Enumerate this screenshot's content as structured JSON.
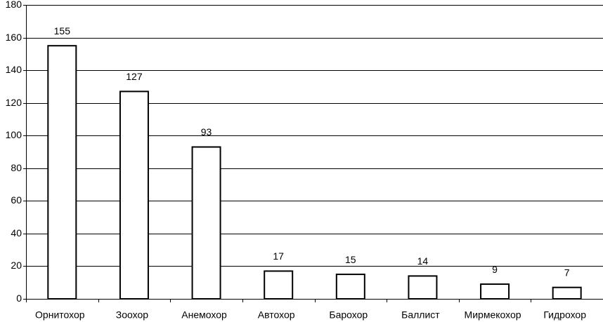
{
  "chart_data": {
    "type": "bar",
    "categories": [
      "Орнитохор",
      "Зоохор",
      "Анемохор",
      "Автохор",
      "Барохор",
      "Баллист",
      "Мирмекохор",
      "Гидрохор"
    ],
    "values": [
      155,
      127,
      93,
      17,
      15,
      14,
      9,
      7
    ],
    "color": "#ffffff",
    "ylim": [
      0,
      180
    ],
    "yticks": [
      0,
      20,
      40,
      60,
      80,
      100,
      120,
      140,
      160,
      180
    ],
    "grid": true
  }
}
